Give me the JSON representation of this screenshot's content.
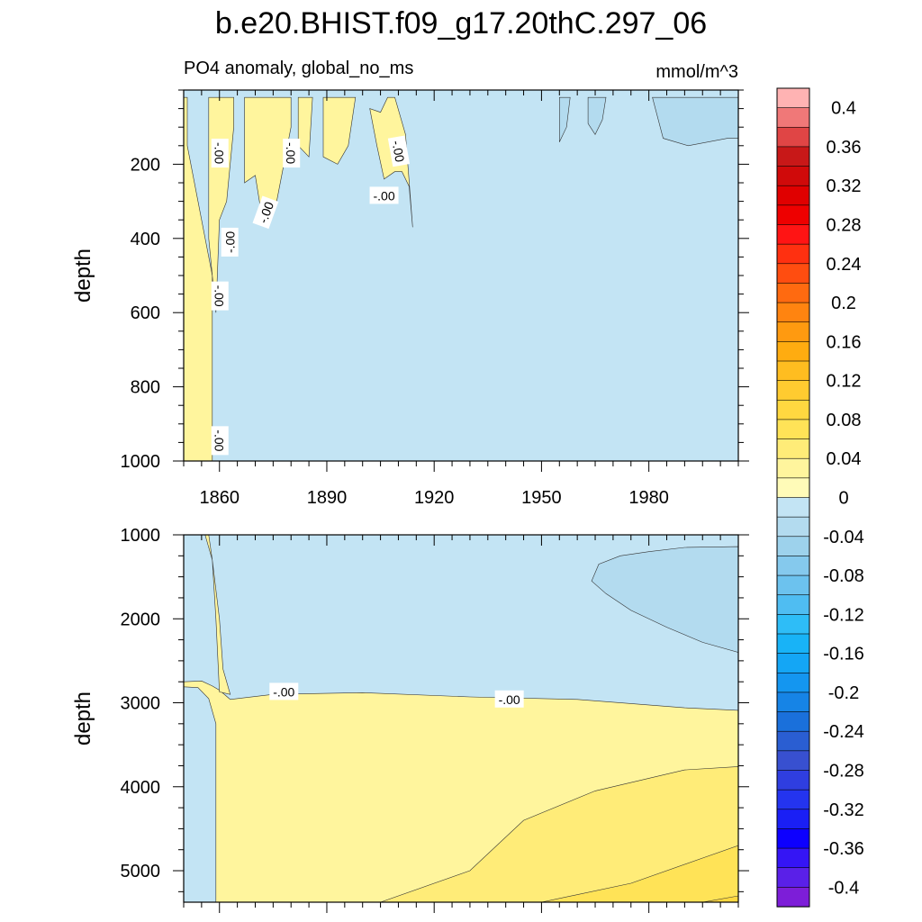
{
  "title": "b.e20.BHIST.f09_g17.20thC.297_06",
  "chart_data": {
    "type": "heatmap",
    "title": "b.e20.BHIST.f09_g17.20thC.297_06",
    "subtitle_left": "PO4 anomaly, global_no_ms",
    "units": "mmol/m^3",
    "x": {
      "range": [
        1850,
        2005
      ],
      "ticks": [
        1860,
        1890,
        1920,
        1950,
        1980
      ],
      "tick_labels": [
        "1860",
        "1890",
        "1920",
        "1950",
        "1980"
      ]
    },
    "panels": [
      {
        "name": "upper-ocean",
        "ylabel": "depth",
        "ylim": [
          1000,
          0
        ],
        "yticks": [
          200,
          400,
          600,
          800,
          1000
        ],
        "ytick_labels": [
          "200",
          "400",
          "600",
          "800",
          "1000"
        ],
        "background_level": -0.02,
        "regions": [
          {
            "level": 0.02,
            "points": [
              [
                1850,
                20
              ],
              [
                1850,
                1000
              ],
              [
                1858,
                1000
              ],
              [
                1858,
                500
              ],
              [
                1854,
                300
              ],
              [
                1851,
                150
              ],
              [
                1851,
                20
              ]
            ]
          },
          {
            "level": 0.02,
            "points": [
              [
                1857,
                20
              ],
              [
                1857,
                400
              ],
              [
                1859,
                600
              ],
              [
                1860,
                350
              ],
              [
                1862,
                300
              ],
              [
                1864,
                100
              ],
              [
                1864,
                20
              ]
            ]
          },
          {
            "level": 0.02,
            "points": [
              [
                1867,
                20
              ],
              [
                1867,
                250
              ],
              [
                1870,
                230
              ],
              [
                1872,
                350
              ],
              [
                1876,
                300
              ],
              [
                1880,
                100
              ],
              [
                1880,
                20
              ]
            ]
          },
          {
            "level": 0.02,
            "points": [
              [
                1882,
                20
              ],
              [
                1882,
                150
              ],
              [
                1885,
                180
              ],
              [
                1886,
                20
              ]
            ]
          },
          {
            "level": 0.02,
            "points": [
              [
                1889,
                20
              ],
              [
                1889,
                180
              ],
              [
                1893,
                200
              ],
              [
                1896,
                150
              ],
              [
                1898,
                20
              ]
            ]
          },
          {
            "level": 0.02,
            "points": [
              [
                1902,
                50
              ],
              [
                1904,
                150
              ],
              [
                1906,
                240
              ],
              [
                1909,
                220
              ],
              [
                1911,
                220
              ],
              [
                1913,
                260
              ],
              [
                1914,
                370
              ],
              [
                1912,
                120
              ],
              [
                1909,
                20
              ],
              [
                1907,
                20
              ],
              [
                1905,
                60
              ]
            ]
          },
          {
            "level": -0.04,
            "points": [
              [
                1981,
                20
              ],
              [
                1984,
                130
              ],
              [
                1991,
                150
              ],
              [
                2002,
                130
              ],
              [
                2005,
                130
              ],
              [
                2005,
                20
              ]
            ]
          },
          {
            "level": -0.04,
            "points": [
              [
                1955,
                20
              ],
              [
                1955,
                140
              ],
              [
                1957,
                100
              ],
              [
                1958,
                20
              ]
            ]
          },
          {
            "level": -0.04,
            "points": [
              [
                1963,
                20
              ],
              [
                1963,
                90
              ],
              [
                1965,
                120
              ],
              [
                1967,
                80
              ],
              [
                1968,
                20
              ]
            ]
          }
        ],
        "contour_labels": [
          {
            "text": "-.00",
            "x": 1860,
            "y": 170,
            "angle": 90
          },
          {
            "text": "-.00",
            "x": 1873,
            "y": 330,
            "angle": -70
          },
          {
            "text": "-.00",
            "x": 1880,
            "y": 170,
            "angle": 90
          },
          {
            "text": "-.00",
            "x": 1906,
            "y": 285,
            "angle": 0
          },
          {
            "text": "-.00",
            "x": 1910,
            "y": 165,
            "angle": 80
          },
          {
            "text": "-.00",
            "x": 1863,
            "y": 410,
            "angle": -90
          },
          {
            "text": "-.00",
            "x": 1860,
            "y": 555,
            "angle": 90
          },
          {
            "text": "-.00",
            "x": 1860,
            "y": 945,
            "angle": 90
          }
        ]
      },
      {
        "name": "deep-ocean",
        "ylabel": "depth",
        "ylim": [
          5375,
          1000
        ],
        "yticks": [
          1000,
          2000,
          3000,
          4000,
          5000
        ],
        "ytick_labels": [
          "1000",
          "2000",
          "3000",
          "4000",
          "5000"
        ],
        "background_level": -0.02,
        "regions": [
          {
            "level": 0.02,
            "points": [
              [
                1850,
                2750
              ],
              [
                1855,
                2740
              ],
              [
                1858,
                2800
              ],
              [
                1860,
                2850
              ],
              [
                1863,
                2960
              ],
              [
                1875,
                2900
              ],
              [
                1900,
                2880
              ],
              [
                1930,
                2930
              ],
              [
                1960,
                2960
              ],
              [
                1990,
                3060
              ],
              [
                2005,
                3090
              ],
              [
                2005,
                5375
              ],
              [
                1859,
                5375
              ],
              [
                1859,
                3250
              ],
              [
                1857,
                2950
              ],
              [
                1854,
                2820
              ],
              [
                1850,
                2810
              ]
            ]
          },
          {
            "level": 0.02,
            "points": [
              [
                1857,
                1000
              ],
              [
                1858,
                1300
              ],
              [
                1860,
                2000
              ],
              [
                1861,
                2600
              ],
              [
                1863,
                2900
              ],
              [
                1860,
                2870
              ],
              [
                1859,
                2000
              ],
              [
                1858,
                1300
              ],
              [
                1856,
                1000
              ]
            ]
          },
          {
            "level": 0.04,
            "points": [
              [
                1905,
                5375
              ],
              [
                1930,
                5000
              ],
              [
                1945,
                4400
              ],
              [
                1965,
                4050
              ],
              [
                1990,
                3800
              ],
              [
                2005,
                3760
              ],
              [
                2005,
                5375
              ]
            ]
          },
          {
            "level": 0.06,
            "points": [
              [
                1950,
                5375
              ],
              [
                1975,
                5150
              ],
              [
                1995,
                4850
              ],
              [
                2005,
                4700
              ],
              [
                2005,
                5375
              ]
            ]
          },
          {
            "level": 0.08,
            "points": [
              [
                1995,
                5375
              ],
              [
                2005,
                5300
              ],
              [
                2005,
                5375
              ]
            ]
          },
          {
            "level": -0.04,
            "points": [
              [
                1964,
                1550
              ],
              [
                1966,
                1350
              ],
              [
                1972,
                1250
              ],
              [
                1980,
                1200
              ],
              [
                1990,
                1150
              ],
              [
                2005,
                1140
              ],
              [
                2005,
                2400
              ],
              [
                1995,
                2280
              ],
              [
                1985,
                2100
              ],
              [
                1975,
                1900
              ],
              [
                1968,
                1700
              ]
            ]
          }
        ],
        "contour_labels": [
          {
            "text": "-.00",
            "x": 1878,
            "y": 2870,
            "angle": 0
          },
          {
            "text": "-.00",
            "x": 1941,
            "y": 2960,
            "angle": 0
          }
        ]
      }
    ],
    "colorbar": {
      "levels": [
        -0.42,
        -0.4,
        -0.38,
        -0.36,
        -0.34,
        -0.32,
        -0.3,
        -0.28,
        -0.26,
        -0.24,
        -0.22,
        -0.2,
        -0.18,
        -0.16,
        -0.14,
        -0.12,
        -0.1,
        -0.08,
        -0.06,
        -0.04,
        -0.02,
        0,
        0.02,
        0.04,
        0.06,
        0.08,
        0.1,
        0.12,
        0.14,
        0.16,
        0.18,
        0.2,
        0.22,
        0.24,
        0.26,
        0.28,
        0.3,
        0.32,
        0.34,
        0.36,
        0.38,
        0.4,
        0.42
      ],
      "colors": [
        "#ffb3b3",
        "#f07878",
        "#e04545",
        "#c81818",
        "#d00a0a",
        "#e00000",
        "#ee0000",
        "#ff1414",
        "#ff3010",
        "#ff4d10",
        "#ff6a10",
        "#ff8410",
        "#ff9a10",
        "#ffac10",
        "#ffbd20",
        "#ffcb30",
        "#ffd840",
        "#ffe357",
        "#ffec78",
        "#fff59d",
        "#fffbb8",
        "#c3e4f4",
        "#b3dbef",
        "#9dd2ec",
        "#85c9ed",
        "#6cc2ee",
        "#4fbdf2",
        "#2ebdf7",
        "#18b3f7",
        "#14a6f5",
        "#1496f0",
        "#1684e6",
        "#1a70db",
        "#2a5ed2",
        "#3850d0",
        "#2f3ee0",
        "#2434ef",
        "#1a1ff5",
        "#0d00ff",
        "#3515f5",
        "#5a20e8",
        "#7d1ed8"
      ],
      "tick_labels": [
        "0.4",
        "0.36",
        "0.32",
        "0.28",
        "0.24",
        "0.2",
        "0.16",
        "0.12",
        "0.08",
        "0.04",
        "0",
        "-0.04",
        "-0.08",
        "-0.12",
        "-0.16",
        "-0.2",
        "-0.24",
        "-0.28",
        "-0.32",
        "-0.36",
        "-0.4"
      ]
    }
  }
}
